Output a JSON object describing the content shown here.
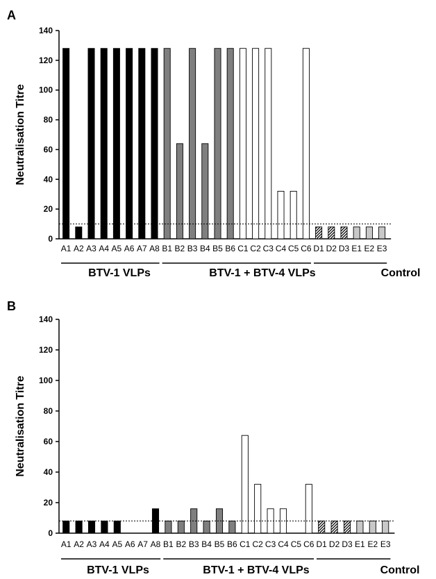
{
  "chart_data": [
    {
      "panel_label": "A",
      "type": "bar",
      "ylabel": "Neutralisation Titre",
      "ylim": [
        0,
        140
      ],
      "yticks": [
        0,
        20,
        40,
        60,
        80,
        100,
        120,
        140
      ],
      "categories": [
        "A1",
        "A2",
        "A3",
        "A4",
        "A5",
        "A6",
        "A7",
        "A8",
        "B1",
        "B2",
        "B3",
        "B4",
        "B5",
        "B6",
        "C1",
        "C2",
        "C3",
        "C4",
        "C5",
        "C6",
        "D1",
        "D2",
        "D3",
        "E1",
        "E2",
        "E3"
      ],
      "values": [
        128,
        8,
        128,
        128,
        128,
        128,
        128,
        128,
        128,
        64,
        128,
        64,
        128,
        128,
        128,
        128,
        128,
        32,
        32,
        128,
        8,
        8,
        8,
        8,
        8,
        8
      ],
      "threshold": 10,
      "groups": [
        {
          "label": "BTV-1 VLPs",
          "range": [
            0,
            7
          ]
        },
        {
          "label": "BTV-1 + BTV-4 VLPs",
          "range": [
            8,
            19
          ]
        },
        {
          "label": "Control",
          "range": [
            20,
            25
          ]
        }
      ],
      "grid": false
    },
    {
      "panel_label": "B",
      "type": "bar",
      "ylabel": "Neutralisation Titre",
      "ylim": [
        0,
        140
      ],
      "yticks": [
        0,
        20,
        40,
        60,
        80,
        100,
        120,
        140
      ],
      "categories": [
        "A1",
        "A2",
        "A3",
        "A4",
        "A5",
        "A6",
        "A7",
        "A8",
        "B1",
        "B2",
        "B3",
        "B4",
        "B5",
        "B6",
        "C1",
        "C2",
        "C3",
        "C4",
        "C5",
        "C6",
        "D1",
        "D2",
        "D3",
        "E1",
        "E2",
        "E3"
      ],
      "values": [
        8,
        8,
        8,
        8,
        8,
        0,
        0,
        16,
        8,
        8,
        16,
        8,
        16,
        8,
        64,
        32,
        16,
        16,
        0,
        32,
        8,
        8,
        8,
        8,
        8,
        8
      ],
      "threshold": 8,
      "groups": [
        {
          "label": "BTV-1 VLPs",
          "range": [
            0,
            7
          ]
        },
        {
          "label": "BTV-1 + BTV-4 VLPs",
          "range": [
            8,
            19
          ]
        },
        {
          "label": "Control",
          "range": [
            20,
            25
          ]
        }
      ],
      "grid": false
    }
  ],
  "styles": {
    "A": "#000000",
    "B": "#7f7f7f",
    "C": "#ffffff",
    "D": "hatched",
    "E": "#c8c8c8",
    "stroke": "#000000"
  }
}
